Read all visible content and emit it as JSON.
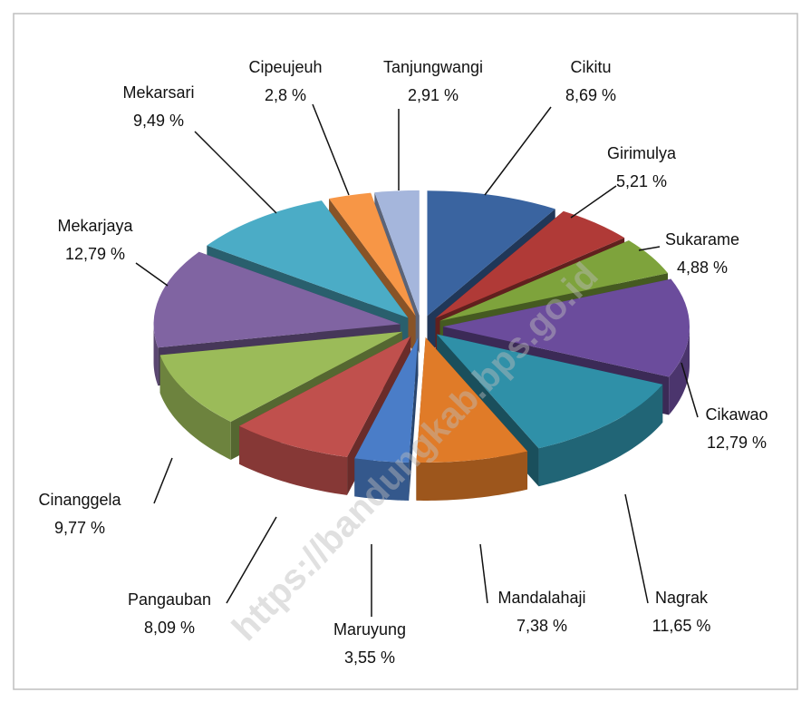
{
  "chart_data": {
    "type": "pie",
    "categories": [
      "Cikitu",
      "Girimulya",
      "Sukarame",
      "Cikawao",
      "Nagrak",
      "Mandalahaji",
      "Maruyung",
      "Pangauban",
      "Cinanggela",
      "Mekarjaya",
      "Mekarsari",
      "Cipeujeuh",
      "Tanjungwangi"
    ],
    "values": [
      8.69,
      5.21,
      4.88,
      12.79,
      11.65,
      7.38,
      3.55,
      8.09,
      9.77,
      12.79,
      9.49,
      2.8,
      2.91
    ],
    "value_labels": [
      "8,69 %",
      "5,21 %",
      "4,88 %",
      "12,79 %",
      "11,65 %",
      "7,38 %",
      "3,55 %",
      "8,09 %",
      "9,77 %",
      "12,79 %",
      "9,49 %",
      "2,8 %",
      "2,91 %"
    ],
    "colors": [
      "#3a64a0",
      "#b03a37",
      "#7ea33c",
      "#6b4c9c",
      "#2f90a8",
      "#e07b28",
      "#4a7dc8",
      "#c0504d",
      "#9bbb59",
      "#8064a2",
      "#4bacc6",
      "#f79646",
      "#a5b6dc"
    ],
    "watermark": "https://bandungkab.bps.go.id"
  }
}
